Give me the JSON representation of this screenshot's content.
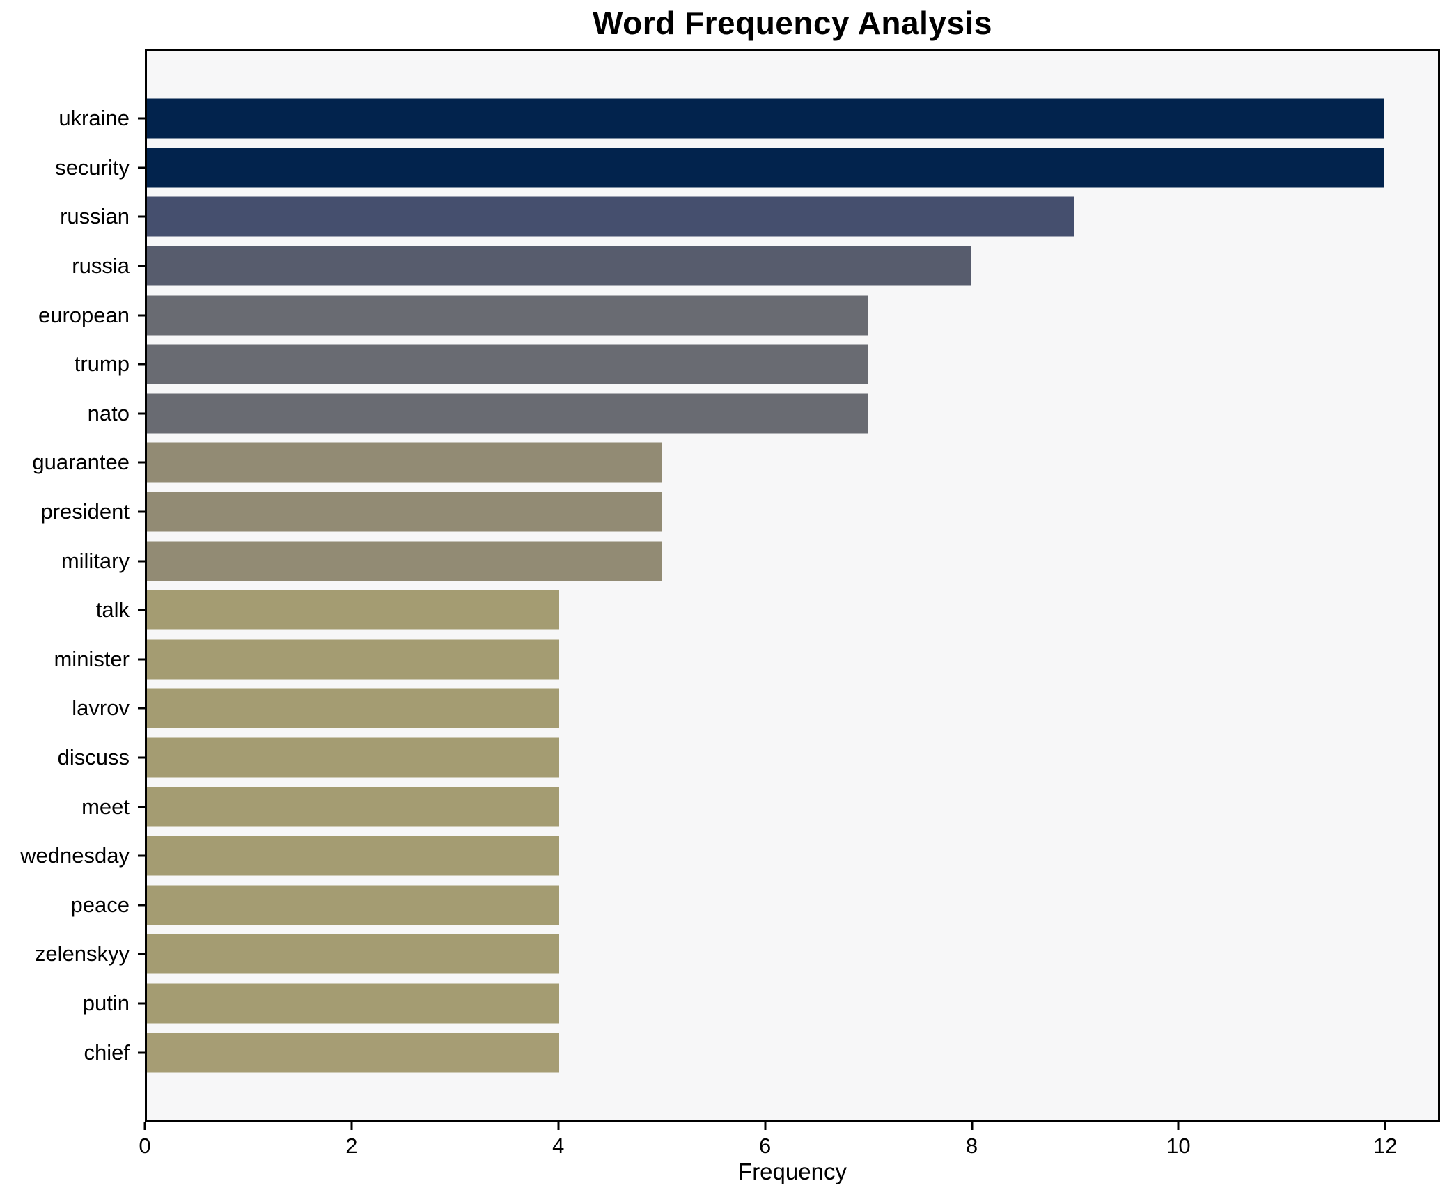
{
  "figure": {
    "title": "Word Frequency Analysis",
    "xlabel": "Frequency"
  },
  "chart_data": {
    "type": "bar",
    "orientation": "horizontal",
    "title": "Word Frequency Analysis",
    "xlabel": "Frequency",
    "ylabel": "",
    "xlim": [
      0,
      12.53
    ],
    "x_ticks": [
      0,
      2,
      4,
      6,
      8,
      10,
      12
    ],
    "grid": false,
    "legend": false,
    "plot_background": "#f7f7f8",
    "spine_color": "#000000",
    "categories": [
      "ukraine",
      "security",
      "russian",
      "russia",
      "european",
      "trump",
      "nato",
      "guarantee",
      "president",
      "military",
      "talk",
      "minister",
      "lavrov",
      "discuss",
      "meet",
      "wednesday",
      "peace",
      "zelenskyy",
      "putin",
      "chief"
    ],
    "values": [
      12,
      12,
      9,
      8,
      7,
      7,
      7,
      5,
      5,
      5,
      4,
      4,
      4,
      4,
      4,
      4,
      4,
      4,
      4,
      4
    ],
    "bar_colors": [
      "#02234d",
      "#02234d",
      "#454f6e",
      "#575c6d",
      "#696b72",
      "#696b72",
      "#696b72",
      "#928b74",
      "#928b74",
      "#928b74",
      "#a49c72",
      "#a49c72",
      "#a49c72",
      "#a49c72",
      "#a49c72",
      "#a49c72",
      "#a49c72",
      "#a49c72",
      "#a49c72",
      "#a69d74"
    ]
  }
}
